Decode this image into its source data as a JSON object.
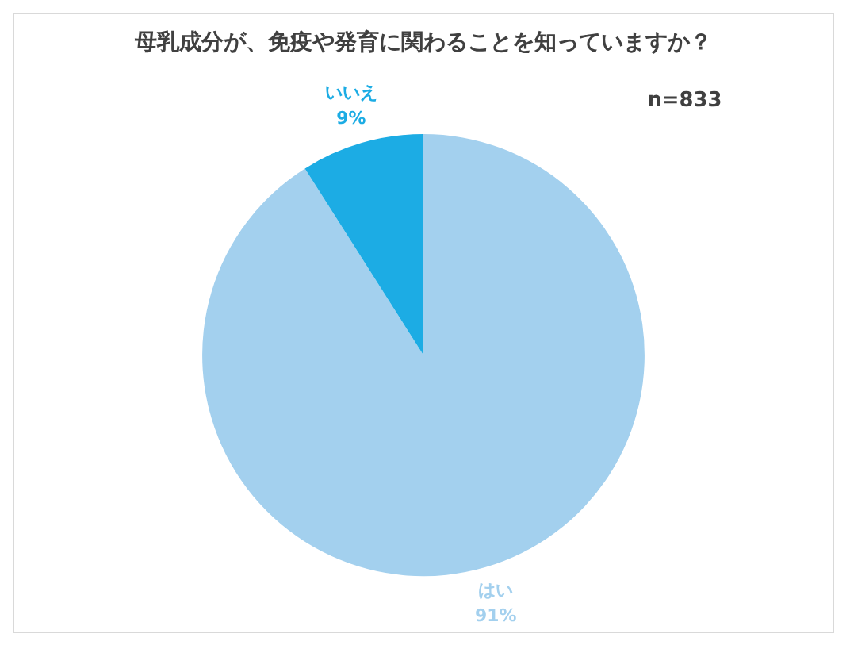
{
  "chart_data": {
    "type": "pie",
    "title": "母乳成分が、免疫や発育に関わることを知っていますか？",
    "categories": [
      "はい",
      "いいえ"
    ],
    "values": [
      91,
      9
    ],
    "value_labels": [
      "91%",
      "9%"
    ],
    "colors": [
      "#a3d0ee",
      "#1cace4"
    ],
    "annotations": [
      "n=833"
    ],
    "legend": false
  }
}
